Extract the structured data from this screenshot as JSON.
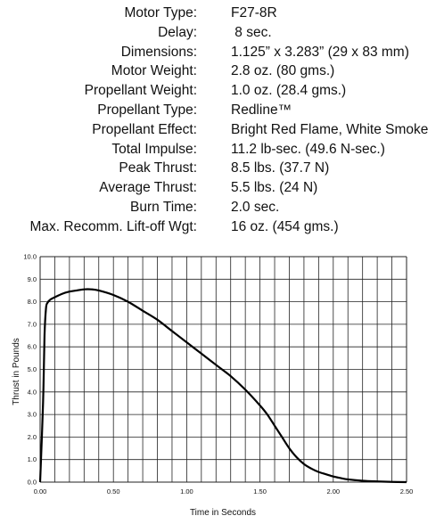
{
  "specs": [
    {
      "label": "Motor Type:",
      "value": "F27-8R"
    },
    {
      "label": "Delay:",
      "value": " 8 sec."
    },
    {
      "label": "Dimensions:",
      "value": "1.125” x 3.283” (29 x 83 mm)"
    },
    {
      "label": "Motor Weight:",
      "value": "2.8 oz. (80 gms.)"
    },
    {
      "label": "Propellant Weight:",
      "value": "1.0 oz. (28.4 gms.)"
    },
    {
      "label": "Propellant Type:",
      "value": "Redline™"
    },
    {
      "label": "Propellant Effect:",
      "value": "Bright Red Flame, White Smoke"
    },
    {
      "label": "Total Impulse:",
      "value": "11.2 lb-sec. (49.6 N-sec.)"
    },
    {
      "label": "Peak Thrust:",
      "value": "8.5 lbs. (37.7 N)"
    },
    {
      "label": "Average Thrust:",
      "value": "5.5 lbs. (24 N)"
    },
    {
      "label": "Burn Time:",
      "value": "2.0 sec."
    },
    {
      "label": "Max. Recomm. Lift-off Wgt:",
      "value": "16 oz. (454 gms.)"
    }
  ],
  "chart_data": {
    "type": "line",
    "title": "",
    "xlabel": "Time in Seconds",
    "ylabel": "Thrust in Pounds",
    "xlim": [
      0,
      2.5
    ],
    "ylim": [
      0,
      10
    ],
    "x_ticks": [
      "0.00",
      "0.50",
      "1.00",
      "1.50",
      "2.00",
      "2.50"
    ],
    "y_ticks": [
      "0.0",
      "1.0",
      "2.0",
      "3.0",
      "4.0",
      "5.0",
      "6.0",
      "7.0",
      "8.0",
      "9.0",
      "10.0"
    ],
    "x_grid_step": 0.1,
    "y_grid_step": 1.0,
    "grid": true,
    "series": [
      {
        "name": "",
        "color": "#000000",
        "x": [
          0.0,
          0.02,
          0.03,
          0.04,
          0.05,
          0.07,
          0.1,
          0.15,
          0.2,
          0.25,
          0.3,
          0.35,
          0.4,
          0.5,
          0.6,
          0.7,
          0.8,
          0.9,
          1.0,
          1.1,
          1.2,
          1.3,
          1.4,
          1.5,
          1.55,
          1.6,
          1.65,
          1.7,
          1.75,
          1.8,
          1.85,
          1.9,
          1.95,
          2.0,
          2.05,
          2.1,
          2.2,
          2.3,
          2.4,
          2.5
        ],
        "y": [
          0.0,
          3.5,
          6.5,
          7.7,
          7.95,
          8.1,
          8.2,
          8.35,
          8.45,
          8.5,
          8.55,
          8.55,
          8.5,
          8.3,
          8.0,
          7.6,
          7.2,
          6.7,
          6.2,
          5.7,
          5.2,
          4.7,
          4.1,
          3.4,
          3.0,
          2.5,
          2.0,
          1.5,
          1.1,
          0.8,
          0.6,
          0.45,
          0.35,
          0.25,
          0.18,
          0.12,
          0.06,
          0.03,
          0.01,
          0.0
        ]
      }
    ]
  }
}
